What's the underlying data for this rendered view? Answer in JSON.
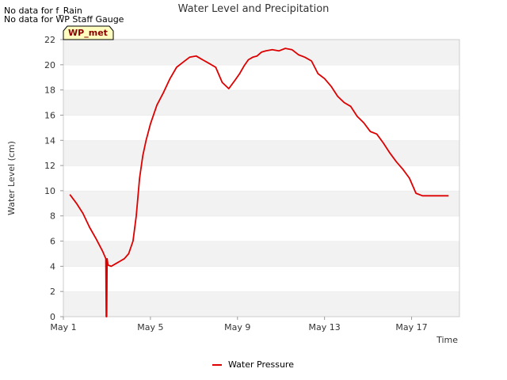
{
  "notices": [
    "No data for f_Rain",
    "No data for WP Staff Gauge"
  ],
  "station_tag": "WP_met",
  "colors": {
    "series": "#dd0000",
    "band": "#f2f2f2",
    "tag_fill": "#ffffc0",
    "tag_text": "#8b0000"
  },
  "chart_data": {
    "type": "line",
    "title": "Water Level and Precipitation",
    "xlabel": "Time",
    "ylabel": "Water Level (cm)",
    "ylim": [
      0,
      22
    ],
    "yticks": [
      0,
      2,
      4,
      6,
      8,
      10,
      12,
      14,
      16,
      18,
      20,
      22
    ],
    "xlim": [
      0,
      18.2
    ],
    "xticks": [
      {
        "value": 0,
        "label": "May 1"
      },
      {
        "value": 4,
        "label": "May 5"
      },
      {
        "value": 8,
        "label": "May 9"
      },
      {
        "value": 12,
        "label": "May 13"
      },
      {
        "value": 16,
        "label": "May 17"
      }
    ],
    "grid": "alternating-bands",
    "legend": "bottom-center",
    "series": [
      {
        "name": "Water Pressure",
        "x": [
          0.3,
          0.6,
          0.9,
          1.2,
          1.5,
          1.8,
          1.95,
          1.97,
          1.99,
          2.01,
          2.05,
          2.2,
          2.4,
          2.6,
          2.8,
          3.0,
          3.2,
          3.35,
          3.5,
          3.65,
          3.8,
          4.0,
          4.3,
          4.6,
          4.9,
          5.2,
          5.5,
          5.8,
          6.1,
          6.4,
          6.7,
          7.0,
          7.3,
          7.6,
          7.9,
          8.1,
          8.3,
          8.5,
          8.7,
          8.9,
          9.1,
          9.3,
          9.6,
          9.9,
          10.2,
          10.5,
          10.8,
          11.1,
          11.4,
          11.7,
          12.0,
          12.3,
          12.6,
          12.9,
          13.2,
          13.5,
          13.8,
          14.1,
          14.4,
          14.7,
          15.0,
          15.3,
          15.6,
          15.9,
          16.2,
          16.5,
          16.8,
          17.1,
          17.4,
          17.7
        ],
        "y": [
          9.7,
          9.0,
          8.2,
          7.1,
          6.2,
          5.2,
          4.6,
          0.0,
          0.0,
          4.6,
          4.1,
          4.0,
          4.2,
          4.4,
          4.6,
          5.0,
          6.0,
          8.0,
          11.0,
          12.8,
          14.0,
          15.3,
          16.8,
          17.8,
          18.9,
          19.8,
          20.2,
          20.6,
          20.7,
          20.4,
          20.1,
          19.8,
          18.6,
          18.1,
          18.8,
          19.3,
          19.9,
          20.4,
          20.6,
          20.7,
          21.0,
          21.1,
          21.2,
          21.1,
          21.3,
          21.2,
          20.8,
          20.6,
          20.3,
          19.3,
          18.9,
          18.3,
          17.5,
          17.0,
          16.7,
          15.9,
          15.4,
          14.7,
          14.5,
          13.8,
          13.0,
          12.3,
          11.7,
          11.0,
          9.8,
          9.6,
          9.6,
          9.6,
          9.6,
          9.6
        ]
      }
    ]
  }
}
